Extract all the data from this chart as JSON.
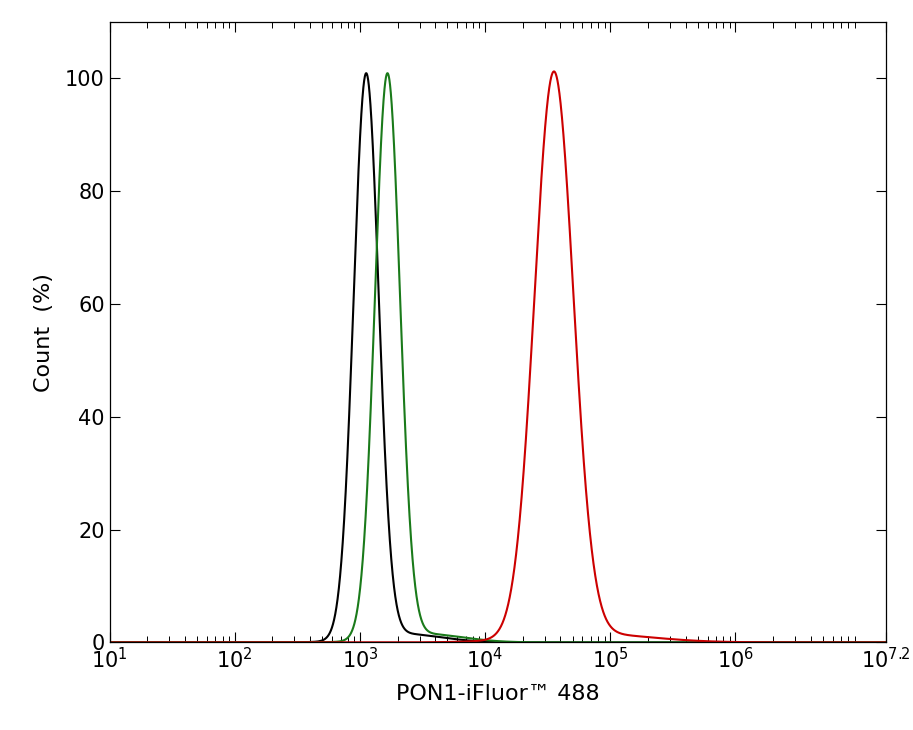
{
  "title": "",
  "xlabel": "PON1-iFluor™ 488",
  "ylabel": "Count  (%)",
  "xlim_log": [
    1,
    7.2
  ],
  "ylim": [
    0,
    110
  ],
  "yticks": [
    0,
    20,
    40,
    60,
    80,
    100
  ],
  "xtick_positions": [
    1,
    2,
    3,
    4,
    5,
    6,
    7.2
  ],
  "black_peak": 3.05,
  "black_sigma": 0.1,
  "green_peak": 3.22,
  "green_sigma": 0.1,
  "red_peak": 4.55,
  "red_sigma": 0.155,
  "line_color_black": "#000000",
  "line_color_green": "#1a7a1a",
  "line_color_red": "#cc0000",
  "line_width": 1.5,
  "background_color": "#ffffff",
  "font_size_ticks": 15,
  "font_size_label": 16
}
